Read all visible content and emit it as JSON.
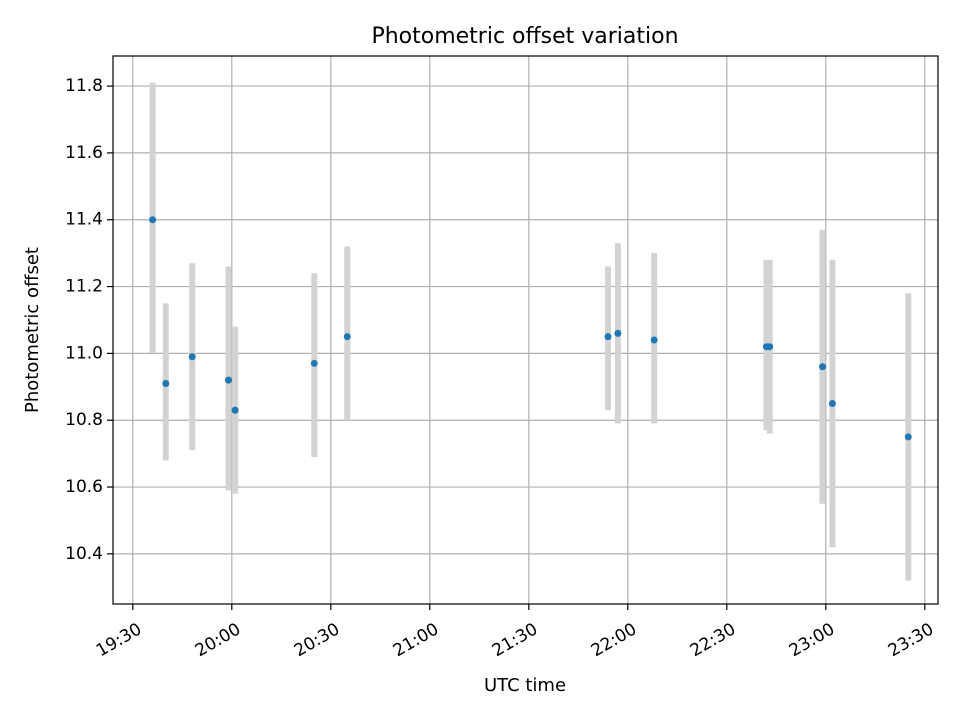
{
  "chart_data": {
    "type": "scatter",
    "title": "Photometric offset variation",
    "xlabel": "UTC time",
    "ylabel": "Photometric offset",
    "x_unit": "UTC HH:MM",
    "xlim": [
      "19:24",
      "23:34"
    ],
    "ylim": [
      10.25,
      11.89
    ],
    "x_ticks": [
      "19:30",
      "20:00",
      "20:30",
      "21:00",
      "21:30",
      "22:00",
      "22:30",
      "23:00",
      "23:30"
    ],
    "y_ticks": [
      "10.4",
      "10.6",
      "10.8",
      "11.0",
      "11.2",
      "11.4",
      "11.6",
      "11.8"
    ],
    "grid": true,
    "series": [
      {
        "marker_color": "#1f77b4",
        "errorbar_color": "#d3d3d3",
        "points": [
          {
            "x": "19:36",
            "y": 11.4,
            "yerr": [
              11.0,
              11.81
            ]
          },
          {
            "x": "19:40",
            "y": 10.91,
            "yerr": [
              10.68,
              11.15
            ]
          },
          {
            "x": "19:48",
            "y": 10.99,
            "yerr": [
              10.71,
              11.27
            ]
          },
          {
            "x": "19:59",
            "y": 10.92,
            "yerr": [
              10.59,
              11.26
            ]
          },
          {
            "x": "20:01",
            "y": 10.83,
            "yerr": [
              10.58,
              11.08
            ]
          },
          {
            "x": "20:01",
            "y": 10.83,
            "yerr": [
              10.59,
              11.07
            ]
          },
          {
            "x": "20:25",
            "y": 10.97,
            "yerr": [
              10.69,
              11.24
            ]
          },
          {
            "x": "20:35",
            "y": 11.05,
            "yerr": [
              10.8,
              11.32
            ]
          },
          {
            "x": "21:54",
            "y": 11.05,
            "yerr": [
              10.83,
              11.26
            ]
          },
          {
            "x": "21:57",
            "y": 11.06,
            "yerr": [
              10.79,
              11.33
            ]
          },
          {
            "x": "22:08",
            "y": 11.04,
            "yerr": [
              10.79,
              11.3
            ]
          },
          {
            "x": "22:42",
            "y": 11.02,
            "yerr": [
              10.77,
              11.28
            ]
          },
          {
            "x": "22:43",
            "y": 11.02,
            "yerr": [
              10.76,
              11.28
            ]
          },
          {
            "x": "22:59",
            "y": 10.96,
            "yerr": [
              10.55,
              11.37
            ]
          },
          {
            "x": "23:02",
            "y": 10.85,
            "yerr": [
              10.42,
              11.28
            ]
          },
          {
            "x": "23:25",
            "y": 10.75,
            "yerr": [
              10.32,
              11.18
            ]
          }
        ]
      }
    ]
  }
}
